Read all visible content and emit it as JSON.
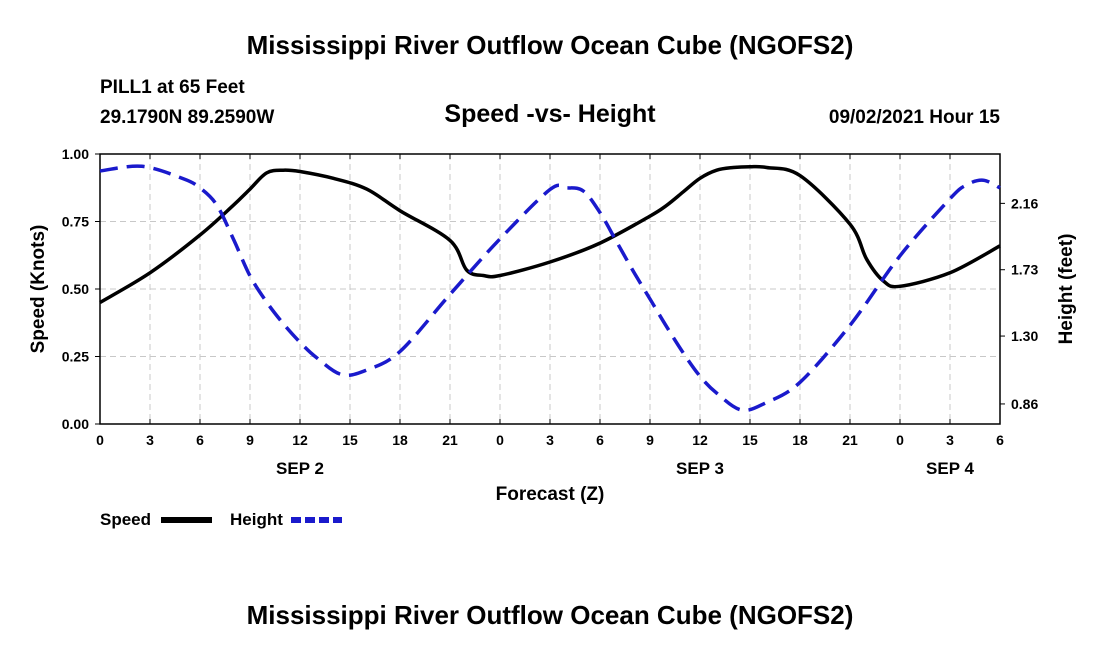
{
  "header": {
    "title": "Mississippi River Outflow Ocean Cube (NGOFS2)",
    "station": "PILL1 at 65 Feet",
    "coordinates": "29.1790N  89.2590W",
    "subtitle": "Speed -vs- Height",
    "timestamp": "09/02/2021 Hour 15"
  },
  "footer": {
    "title": "Mississippi River Outflow Ocean Cube (NGOFS2)"
  },
  "legend": {
    "speed_label": "Speed",
    "height_label": "Height",
    "speed_color": "#000000",
    "height_color": "#1a1acc"
  },
  "chart_data": {
    "type": "line",
    "title": "Speed -vs- Height",
    "xlabel": "Forecast (Z)",
    "ylabel": "Speed (Knots)",
    "y2label": "Height (feet)",
    "x_hours_range": [
      0,
      54
    ],
    "x_tick_labels": [
      "0",
      "3",
      "6",
      "9",
      "12",
      "15",
      "18",
      "21",
      "0",
      "3",
      "6",
      "9",
      "12",
      "15",
      "18",
      "21",
      "0",
      "3",
      "6"
    ],
    "date_labels": [
      {
        "label": "SEP 2",
        "hour": 12
      },
      {
        "label": "SEP 3",
        "hour": 36
      },
      {
        "label": "SEP 4",
        "hour": 51
      }
    ],
    "ylim": [
      0,
      1.0
    ],
    "y_ticks": [
      0.0,
      0.25,
      0.5,
      0.75,
      1.0
    ],
    "y_tick_labels": [
      "0.00",
      "0.25",
      "0.50",
      "0.75",
      "1.00"
    ],
    "y2lim": [
      0.73,
      2.48
    ],
    "y2_ticks": [
      0.86,
      1.3,
      1.73,
      2.16
    ],
    "y2_tick_labels": [
      "0.86",
      "1.30",
      "1.73",
      "2.16"
    ],
    "grid": true,
    "series": [
      {
        "name": "Speed",
        "axis": "left",
        "style": "solid",
        "x": [
          0,
          3,
          6,
          8,
          9,
          10,
          11,
          12,
          14,
          16,
          18,
          21,
          22,
          23,
          24,
          27,
          30,
          33,
          34,
          35,
          36,
          37,
          38,
          39,
          40,
          42,
          45,
          46,
          47,
          48,
          51,
          54
        ],
        "values": [
          0.45,
          0.56,
          0.7,
          0.81,
          0.87,
          0.93,
          0.94,
          0.935,
          0.91,
          0.87,
          0.79,
          0.68,
          0.57,
          0.55,
          0.55,
          0.6,
          0.67,
          0.77,
          0.81,
          0.86,
          0.91,
          0.94,
          0.95,
          0.953,
          0.95,
          0.92,
          0.74,
          0.61,
          0.53,
          0.51,
          0.56,
          0.66
        ]
      },
      {
        "name": "Height",
        "axis": "right",
        "style": "dashed",
        "x": [
          0,
          2.5,
          5,
          6,
          7,
          8,
          9,
          10,
          11,
          12,
          13,
          14.5,
          16,
          18,
          21,
          24,
          27,
          28,
          29,
          30,
          31,
          32,
          33,
          34,
          35,
          36,
          37,
          38.5,
          40,
          42,
          45,
          48,
          51,
          52,
          53,
          54
        ],
        "values": [
          2.37,
          2.4,
          2.32,
          2.26,
          2.15,
          1.93,
          1.69,
          1.52,
          1.38,
          1.26,
          1.16,
          1.05,
          1.08,
          1.2,
          1.57,
          1.93,
          2.25,
          2.26,
          2.24,
          2.1,
          1.91,
          1.72,
          1.54,
          1.36,
          1.19,
          1.04,
          0.93,
          0.82,
          0.87,
          1.0,
          1.37,
          1.82,
          2.19,
          2.28,
          2.31,
          2.26
        ]
      }
    ]
  }
}
